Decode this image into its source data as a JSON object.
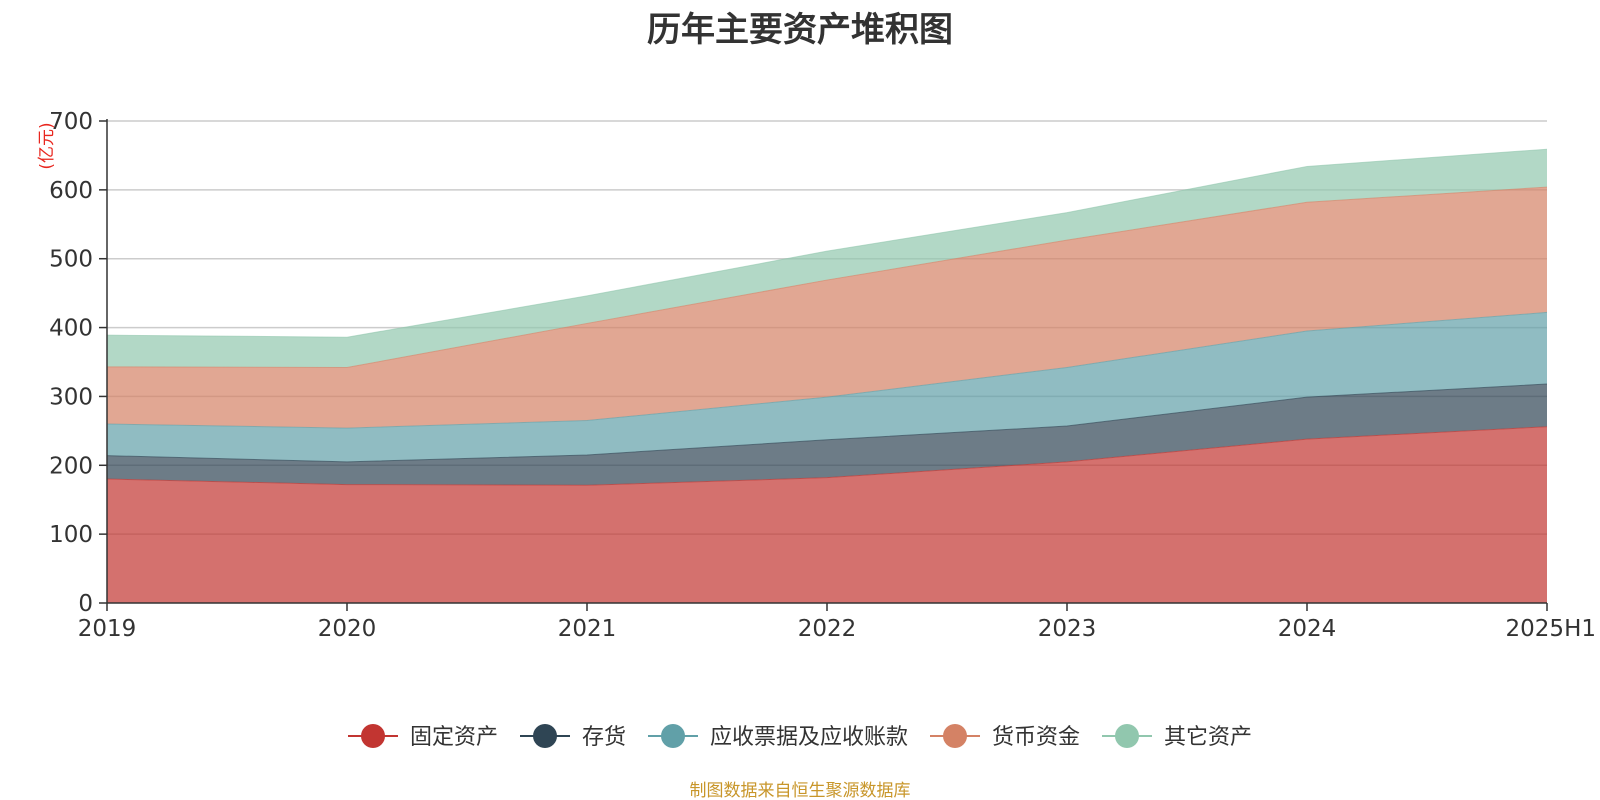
{
  "title": "历年主要资产堆积图",
  "source_note": "制图数据来自恒生聚源数据库",
  "chart_data": {
    "type": "area",
    "stacked": true,
    "title": "历年主要资产堆积图",
    "y_unit": "(亿元)",
    "categories": [
      "2019",
      "2020",
      "2021",
      "2022",
      "2023",
      "2024",
      "2025H1"
    ],
    "ylim": [
      0,
      700
    ],
    "yticks": [
      0,
      100,
      200,
      300,
      400,
      500,
      600,
      700
    ],
    "grid": true,
    "legend_position": "bottom",
    "series": [
      {
        "name": "固定资产",
        "color": "#c23531",
        "values": [
          180,
          172,
          171,
          182,
          205,
          238,
          256
        ]
      },
      {
        "name": "存货",
        "color": "#2f4554",
        "values": [
          34,
          33,
          44,
          55,
          52,
          61,
          62
        ]
      },
      {
        "name": "应收票据及应收账款",
        "color": "#61a0a8",
        "values": [
          46,
          49,
          50,
          62,
          85,
          96,
          104
        ]
      },
      {
        "name": "货币资金",
        "color": "#d48265",
        "values": [
          83,
          88,
          141,
          170,
          185,
          187,
          182
        ]
      },
      {
        "name": "其它资产",
        "color": "#91c7ae",
        "values": [
          46,
          44,
          40,
          42,
          40,
          52,
          55
        ]
      }
    ]
  }
}
